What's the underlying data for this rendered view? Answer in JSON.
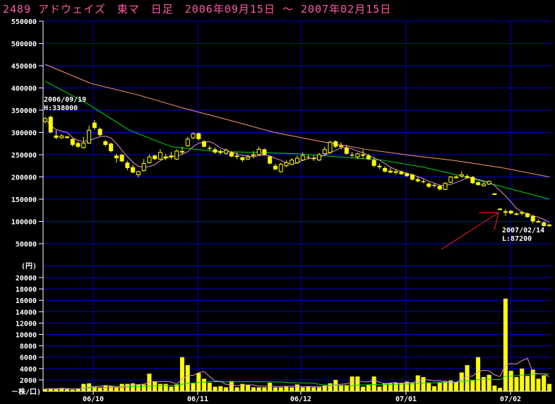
{
  "title": "2489 アドウェイズ　東マ　日足　2006年09月15日 ～ 2007年02月15日",
  "colors": {
    "background": "#000000",
    "grid": "#0000cc",
    "candle": "#ffff00",
    "ma_short": "#e090e0",
    "ma_mid": "#00dd00",
    "ma_long": "#ff9966",
    "title": "#ff5aa5",
    "arrow": "#ff2020",
    "axis_text": "#ffffff"
  },
  "chart_data": [
    {
      "type": "candlestick",
      "title": "2489 アドウェイズ　東マ　日足　2006年09月15日 ～ 2007年02月15日",
      "ylabel": "(円)",
      "ylim": [
        0,
        550000
      ],
      "yticks": [
        "550000",
        "500000",
        "450000",
        "400000",
        "350000",
        "300000",
        "250000",
        "200000",
        "150000",
        "100000",
        "50000"
      ],
      "xticks": [
        "06/10",
        "06/11",
        "06/12",
        "07/01",
        "07/02"
      ],
      "grid": true,
      "ohlc": [
        [
          325000,
          335000,
          320000,
          331000
        ],
        [
          335000,
          338000,
          298000,
          300000
        ],
        [
          293000,
          305000,
          285000,
          288000
        ],
        [
          288000,
          296000,
          285000,
          292000
        ],
        [
          290000,
          292000,
          286000,
          290000
        ],
        [
          285000,
          287000,
          268000,
          272000
        ],
        [
          276000,
          279000,
          265000,
          268000
        ],
        [
          266000,
          290000,
          263000,
          276000
        ],
        [
          276000,
          315000,
          274000,
          305000
        ],
        [
          322000,
          328000,
          306000,
          310000
        ],
        [
          308000,
          311000,
          292000,
          294000
        ],
        [
          280000,
          283000,
          268000,
          272000
        ],
        [
          275000,
          277000,
          255000,
          258000
        ],
        [
          248000,
          252000,
          232000,
          242000
        ],
        [
          250000,
          252000,
          233000,
          235000
        ],
        [
          232000,
          236000,
          215000,
          220000
        ],
        [
          222000,
          228000,
          208000,
          210000
        ],
        [
          205000,
          214000,
          199000,
          212000
        ],
        [
          214000,
          240000,
          212000,
          230000
        ],
        [
          232000,
          250000,
          230000,
          245000
        ],
        [
          248000,
          250000,
          238000,
          240000
        ],
        [
          240000,
          262000,
          238000,
          255000
        ],
        [
          246000,
          252000,
          238000,
          242000
        ],
        [
          248000,
          256000,
          240000,
          244000
        ],
        [
          240000,
          262000,
          238000,
          258000
        ],
        [
          258000,
          268000,
          250000,
          255000
        ],
        [
          270000,
          290000,
          268000,
          285000
        ],
        [
          288000,
          300000,
          285000,
          297000
        ],
        [
          298000,
          300000,
          282000,
          285000
        ],
        [
          280000,
          283000,
          266000,
          268000
        ],
        [
          265000,
          270000,
          260000,
          263000
        ],
        [
          262000,
          266000,
          252000,
          255000
        ],
        [
          258000,
          262000,
          250000,
          254000
        ],
        [
          253000,
          264000,
          250000,
          260000
        ],
        [
          255000,
          258000,
          244000,
          246000
        ],
        [
          248000,
          255000,
          240000,
          245000
        ],
        [
          244000,
          246000,
          234000,
          238000
        ],
        [
          240000,
          250000,
          238000,
          245000
        ],
        [
          248000,
          258000,
          242000,
          250000
        ],
        [
          250000,
          268000,
          248000,
          262000
        ],
        [
          262000,
          264000,
          248000,
          250000
        ],
        [
          246000,
          248000,
          228000,
          230000
        ],
        [
          225000,
          230000,
          215000,
          217000
        ],
        [
          212000,
          232000,
          210000,
          228000
        ],
        [
          225000,
          238000,
          222000,
          232000
        ],
        [
          228000,
          242000,
          226000,
          238000
        ],
        [
          232000,
          248000,
          230000,
          242000
        ],
        [
          238000,
          255000,
          236000,
          248000
        ],
        [
          245000,
          250000,
          240000,
          244000
        ],
        [
          242000,
          248000,
          236000,
          240000
        ],
        [
          238000,
          254000,
          236000,
          250000
        ],
        [
          252000,
          268000,
          250000,
          262000
        ],
        [
          255000,
          282000,
          252000,
          278000
        ],
        [
          280000,
          282000,
          265000,
          268000
        ],
        [
          268000,
          278000,
          262000,
          270000
        ],
        [
          265000,
          272000,
          250000,
          252000
        ],
        [
          250000,
          256000,
          244000,
          248000
        ],
        [
          245000,
          254000,
          240000,
          252000
        ],
        [
          250000,
          262000,
          242000,
          250000
        ],
        [
          248000,
          252000,
          238000,
          240000
        ],
        [
          238000,
          244000,
          222000,
          225000
        ],
        [
          225000,
          230000,
          218000,
          222000
        ],
        [
          220000,
          224000,
          210000,
          212000
        ],
        [
          214000,
          220000,
          208000,
          210000
        ],
        [
          210000,
          218000,
          206000,
          212000
        ],
        [
          212000,
          214000,
          205000,
          206000
        ],
        [
          208000,
          210000,
          200000,
          202000
        ],
        [
          205000,
          208000,
          192000,
          194000
        ],
        [
          195000,
          200000,
          188000,
          190000
        ],
        [
          190000,
          194000,
          186000,
          188000
        ],
        [
          185000,
          188000,
          175000,
          178000
        ],
        [
          182000,
          186000,
          176000,
          180000
        ],
        [
          180000,
          182000,
          170000,
          172000
        ],
        [
          172000,
          188000,
          170000,
          186000
        ],
        [
          188000,
          202000,
          186000,
          200000
        ],
        [
          198000,
          203000,
          196000,
          200000
        ],
        [
          202000,
          212000,
          198000,
          205000
        ],
        [
          202000,
          206000,
          196000,
          198000
        ],
        [
          200000,
          202000,
          184000,
          186000
        ],
        [
          188000,
          190000,
          180000,
          182000
        ],
        [
          180000,
          188000,
          178000,
          184000
        ],
        [
          184000,
          192000,
          182000,
          190000
        ],
        [
          162000,
          164000,
          160000,
          162000
        ],
        [
          128000,
          130000,
          126000,
          128000
        ],
        [
          122000,
          128000,
          112000,
          122000
        ],
        [
          124000,
          125000,
          116000,
          118000
        ],
        [
          116000,
          120000,
          114000,
          117000
        ],
        [
          118000,
          124000,
          114000,
          120000
        ],
        [
          118000,
          120000,
          108000,
          110000
        ],
        [
          112000,
          114000,
          96000,
          100000
        ],
        [
          100000,
          104000,
          98000,
          100000
        ],
        [
          98000,
          100000,
          87200,
          90000
        ],
        [
          90000,
          95000,
          88000,
          92000
        ]
      ],
      "ma_mid": [
        415000,
        365000,
        305000,
        268000,
        258000,
        255000,
        252000,
        245000,
        238000,
        222000,
        200000,
        175000,
        150000
      ],
      "ma_long": [
        453000,
        410000,
        385000,
        355000,
        328000,
        300000,
        280000,
        262000,
        248000,
        236000,
        220000,
        200000
      ],
      "annotations": {
        "high_date": "2006/09/19",
        "high_value": "H:338000",
        "low_date": "2007/02/14",
        "low_value": "L:87200"
      }
    },
    {
      "type": "bar",
      "ylabel": "－株/口)",
      "ylim": [
        0,
        20000
      ],
      "yticks": [
        "20000",
        "18000",
        "16000",
        "14000",
        "12000",
        "10000",
        "8000",
        "6000",
        "4000",
        "2000"
      ],
      "grid": true,
      "values": [
        400,
        500,
        400,
        600,
        400,
        300,
        400,
        1300,
        1400,
        800,
        600,
        1000,
        900,
        700,
        1300,
        1300,
        1400,
        1200,
        1200,
        3100,
        1700,
        1300,
        1300,
        800,
        1200,
        6000,
        4600,
        1400,
        3200,
        2200,
        1500,
        800,
        900,
        700,
        1800,
        700,
        1300,
        1100,
        700,
        700,
        700,
        1500,
        700,
        700,
        800,
        700,
        1200,
        700,
        800,
        700,
        700,
        1000,
        1400,
        2000,
        1100,
        1100,
        2600,
        2600,
        800,
        1200,
        2600,
        800,
        1400,
        1400,
        1500,
        1500,
        1700,
        1500,
        2800,
        2500,
        1500,
        900,
        1600,
        1800,
        1900,
        1600,
        3300,
        4600,
        2000,
        6000,
        2500,
        2900,
        1000,
        600,
        16300,
        3600,
        2500,
        4000,
        2700,
        3800,
        2200,
        2800,
        1300
      ]
    }
  ]
}
